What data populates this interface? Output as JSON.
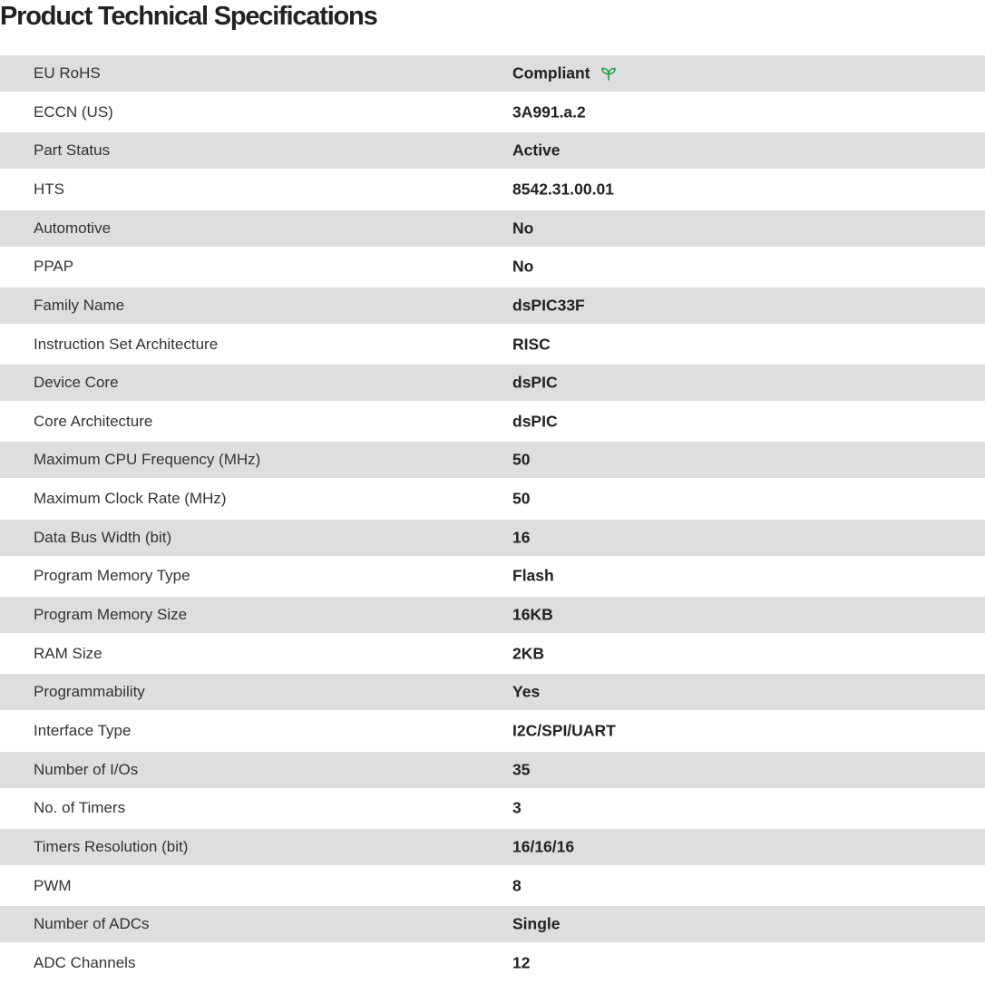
{
  "title": "Product Technical Specifications",
  "accent_color": "#1a9e4a",
  "specs": [
    {
      "label": "EU RoHS",
      "value": "Compliant",
      "icon": "leaf-icon"
    },
    {
      "label": "ECCN (US)",
      "value": "3A991.a.2"
    },
    {
      "label": "Part Status",
      "value": "Active"
    },
    {
      "label": "HTS",
      "value": "8542.31.00.01"
    },
    {
      "label": "Automotive",
      "value": "No"
    },
    {
      "label": "PPAP",
      "value": "No"
    },
    {
      "label": "Family Name",
      "value": "dsPIC33F"
    },
    {
      "label": "Instruction Set Architecture",
      "value": "RISC"
    },
    {
      "label": "Device Core",
      "value": "dsPIC"
    },
    {
      "label": "Core Architecture",
      "value": "dsPIC"
    },
    {
      "label": "Maximum CPU Frequency (MHz)",
      "value": "50"
    },
    {
      "label": "Maximum Clock Rate (MHz)",
      "value": "50"
    },
    {
      "label": "Data Bus Width (bit)",
      "value": "16"
    },
    {
      "label": "Program Memory Type",
      "value": "Flash"
    },
    {
      "label": "Program Memory Size",
      "value": "16KB"
    },
    {
      "label": "RAM Size",
      "value": "2KB"
    },
    {
      "label": "Programmability",
      "value": "Yes"
    },
    {
      "label": "Interface Type",
      "value": "I2C/SPI/UART"
    },
    {
      "label": "Number of I/Os",
      "value": "35"
    },
    {
      "label": "No. of Timers",
      "value": "3"
    },
    {
      "label": "Timers Resolution (bit)",
      "value": "16/16/16"
    },
    {
      "label": "PWM",
      "value": "8"
    },
    {
      "label": "Number of ADCs",
      "value": "Single"
    },
    {
      "label": "ADC Channels",
      "value": "12"
    }
  ]
}
